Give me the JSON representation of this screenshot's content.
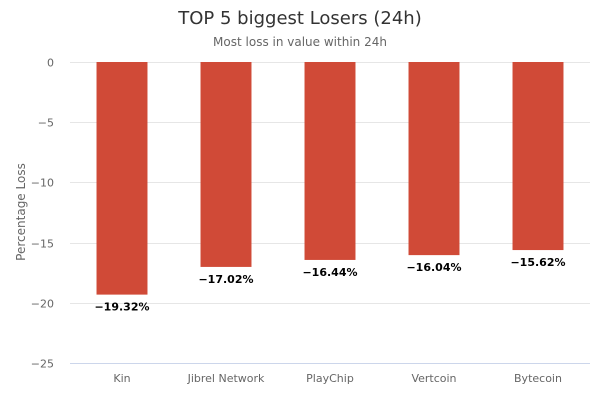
{
  "chart_data": {
    "type": "bar",
    "title": "TOP 5 biggest Losers (24h)",
    "subtitle": "Most loss in value within 24h",
    "ylabel": "Percentage Loss",
    "xlabel": "",
    "categories": [
      "Kin",
      "Jibrel Network",
      "PlayChip",
      "Vertcoin",
      "Bytecoin"
    ],
    "values": [
      -19.32,
      -17.02,
      -16.44,
      -16.04,
      -15.62
    ],
    "data_labels": [
      "−19.32%",
      "−17.02%",
      "−16.44%",
      "−16.04%",
      "−15.62%"
    ],
    "ylim": [
      -25,
      0
    ],
    "yticks": [
      0,
      -5,
      -10,
      -15,
      -20,
      -25
    ],
    "ytick_labels": [
      "0",
      "−5",
      "−10",
      "−15",
      "−20",
      "−25"
    ],
    "grid": true,
    "legend": "none",
    "bar_color": "#d04a37"
  }
}
